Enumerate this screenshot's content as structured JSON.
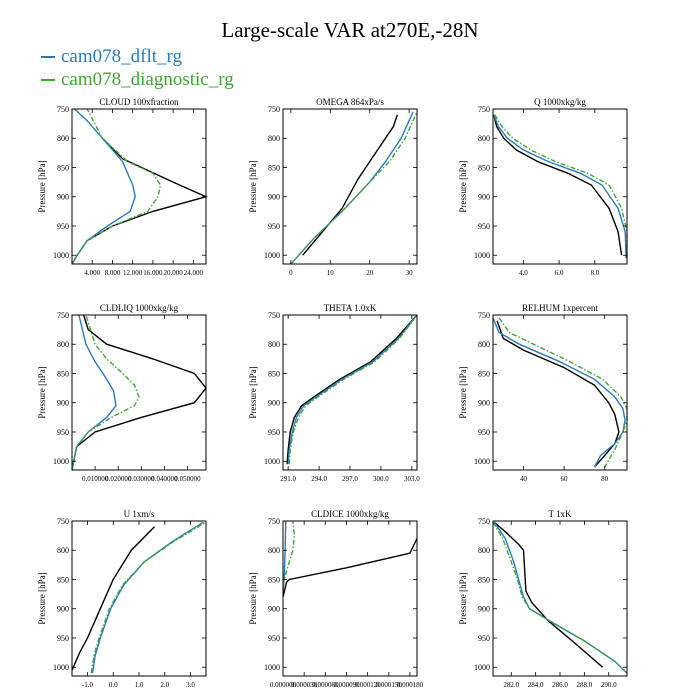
{
  "title": "Large-scale VAR at270E,-28N",
  "legend": [
    {
      "label": "cam078_dflt_rg",
      "color": "#2b7bba"
    },
    {
      "label": "cam078_diagnostic_rg",
      "color": "#3fa535"
    }
  ],
  "obs_color": "#000000",
  "chart_data": [
    {
      "type": "line",
      "title": "CLOUD 100xfraction",
      "ylabel": "Pressure [hPa]",
      "xlim": [
        0,
        26.5
      ],
      "ylim": [
        1015,
        750
      ],
      "xticks": [
        4,
        8,
        12,
        16,
        20,
        24
      ],
      "xticklabels": [
        "4.000",
        "8.000",
        "12.000",
        "16.000",
        "20.000",
        "24.000"
      ],
      "yticks": [
        750,
        800,
        850,
        900,
        950,
        1000
      ],
      "series": [
        {
          "style": "solid",
          "color_key": "obs",
          "x": [
            0,
            1,
            3,
            8,
            16,
            26.5,
            20,
            10,
            6
          ],
          "y": [
            1015,
            1000,
            975,
            950,
            925,
            900,
            875,
            835,
            800
          ]
        },
        {
          "style": "solid",
          "color_key": "0",
          "x": [
            0,
            1,
            3,
            7,
            11.5,
            12.5,
            12,
            11,
            10,
            6,
            3,
            0.5
          ],
          "y": [
            1015,
            1000,
            975,
            950,
            925,
            900,
            880,
            860,
            840,
            800,
            770,
            750
          ]
        },
        {
          "style": "dashdot",
          "color_key": "1",
          "x": [
            0,
            1,
            3,
            8,
            15,
            17,
            17.5,
            16,
            11,
            6,
            3
          ],
          "y": [
            1015,
            1000,
            975,
            950,
            925,
            900,
            880,
            860,
            840,
            800,
            750
          ]
        }
      ]
    },
    {
      "type": "line",
      "title": "OMEGA 864xPa/s",
      "ylabel": "",
      "xlim": [
        -2,
        32
      ],
      "ylim": [
        1015,
        750
      ],
      "xticks": [
        0,
        10,
        20,
        30
      ],
      "xticklabels": [
        "0",
        "10",
        "20",
        "30"
      ],
      "yticks": [
        750,
        800,
        850,
        900,
        950,
        1000
      ],
      "series": [
        {
          "style": "solid",
          "color_key": "obs",
          "x": [
            3,
            8,
            13,
            17,
            20,
            22,
            24,
            26,
            27
          ],
          "y": [
            1000,
            960,
            920,
            870,
            840,
            820,
            800,
            780,
            760
          ]
        },
        {
          "style": "solid",
          "color_key": "0",
          "x": [
            0,
            6,
            13,
            20,
            24,
            28,
            31
          ],
          "y": [
            1015,
            970,
            925,
            875,
            840,
            800,
            755
          ]
        },
        {
          "style": "dashdot",
          "color_key": "1",
          "x": [
            0,
            6,
            13,
            20,
            25,
            29,
            32
          ],
          "y": [
            1015,
            970,
            925,
            875,
            840,
            800,
            755
          ]
        }
      ]
    },
    {
      "type": "line",
      "title": "Q 1000xkg/kg",
      "ylabel": "",
      "xlim": [
        2.3,
        9.8
      ],
      "ylim": [
        1015,
        750
      ],
      "xticks": [
        4,
        6,
        8
      ],
      "xticklabels": [
        "4.0",
        "6.0",
        "8.0"
      ],
      "yticks": [
        750,
        800,
        850,
        900,
        950,
        1000
      ],
      "series": [
        {
          "style": "solid",
          "color_key": "obs",
          "x": [
            2.35,
            2.5,
            2.9,
            3.6,
            4.8,
            6.5,
            7.8,
            8.8,
            9.3,
            9.5
          ],
          "y": [
            760,
            780,
            800,
            820,
            840,
            860,
            880,
            920,
            960,
            1000
          ]
        },
        {
          "style": "solid",
          "color_key": "0",
          "x": [
            2.35,
            2.6,
            3.1,
            4.0,
            5.4,
            7.2,
            8.4,
            9.3,
            9.7,
            9.75
          ],
          "y": [
            760,
            780,
            800,
            820,
            840,
            860,
            880,
            920,
            960,
            1005
          ]
        },
        {
          "style": "dashdot",
          "color_key": "1",
          "x": [
            2.4,
            2.8,
            3.4,
            4.4,
            5.8,
            7.6,
            8.8,
            9.5,
            9.8,
            9.8
          ],
          "y": [
            760,
            780,
            800,
            820,
            840,
            860,
            880,
            920,
            960,
            1005
          ]
        }
      ]
    },
    {
      "type": "line",
      "title": "CLDLIQ 1000xkg/kg",
      "ylabel": "",
      "xlim": [
        0,
        0.058
      ],
      "ylim": [
        1015,
        750
      ],
      "xticks": [
        0.01,
        0.02,
        0.03,
        0.04,
        0.05
      ],
      "xticklabels": [
        "0.010000",
        "0.020000",
        "0.030000",
        "0.040000",
        "0.050000"
      ],
      "yticks": [
        750,
        800,
        850,
        900,
        950,
        1000
      ],
      "series": [
        {
          "style": "solid",
          "color_key": "obs",
          "x": [
            0,
            0.002,
            0.01,
            0.03,
            0.053,
            0.058,
            0.053,
            0.035,
            0.015,
            0.007,
            0.005
          ],
          "y": [
            1015,
            975,
            950,
            925,
            900,
            875,
            850,
            825,
            800,
            775,
            750
          ]
        },
        {
          "style": "solid",
          "color_key": "0",
          "x": [
            0,
            0.002,
            0.007,
            0.015,
            0.019,
            0.018,
            0.015,
            0.01,
            0.006,
            0.003
          ],
          "y": [
            1015,
            975,
            950,
            925,
            905,
            880,
            860,
            830,
            800,
            750
          ]
        },
        {
          "style": "dashdot",
          "color_key": "1",
          "x": [
            0,
            0.002,
            0.007,
            0.017,
            0.027,
            0.029,
            0.027,
            0.022,
            0.015,
            0.01,
            0.006
          ],
          "y": [
            1015,
            975,
            950,
            925,
            905,
            890,
            870,
            850,
            825,
            800,
            750
          ]
        }
      ]
    },
    {
      "type": "line",
      "title": "THETA 1.0xK",
      "ylabel": "",
      "xlim": [
        290.5,
        303.5
      ],
      "ylim": [
        1015,
        750
      ],
      "xticks": [
        291,
        294,
        297,
        300,
        303
      ],
      "xticklabels": [
        "291.0",
        "294.0",
        "297.0",
        "300.0",
        "303.0"
      ],
      "yticks": [
        750,
        800,
        850,
        900,
        950,
        1000
      ],
      "series": [
        {
          "style": "solid",
          "color_key": "obs",
          "x": [
            290.9,
            291.0,
            291.2,
            291.6,
            292.3,
            293.5,
            296.0,
            299.0,
            301.5,
            303.5
          ],
          "y": [
            1005,
            980,
            950,
            925,
            905,
            890,
            860,
            830,
            790,
            750
          ]
        },
        {
          "style": "solid",
          "color_key": "0",
          "x": [
            291.0,
            291.1,
            291.4,
            291.8,
            292.5,
            293.7,
            296.2,
            299.2,
            301.7,
            303.5
          ],
          "y": [
            1005,
            980,
            950,
            925,
            905,
            890,
            860,
            830,
            790,
            750
          ]
        },
        {
          "style": "dashdot",
          "color_key": "1",
          "x": [
            291.1,
            291.2,
            291.5,
            292.0,
            292.7,
            293.9,
            296.4,
            299.4,
            301.8,
            303.5
          ],
          "y": [
            1005,
            980,
            950,
            925,
            905,
            890,
            860,
            830,
            790,
            750
          ]
        }
      ]
    },
    {
      "type": "line",
      "title": "RELHUM 1xpercent",
      "ylabel": "",
      "xlim": [
        25,
        91
      ],
      "ylim": [
        1015,
        750
      ],
      "xticks": [
        40,
        60,
        80
      ],
      "xticklabels": [
        "40",
        "60",
        "80"
      ],
      "yticks": [
        750,
        800,
        850,
        900,
        950,
        1000
      ],
      "series": [
        {
          "style": "solid",
          "color_key": "obs",
          "x": [
            27,
            30,
            40,
            60,
            75,
            82,
            85,
            87,
            85,
            80,
            75
          ],
          "y": [
            760,
            790,
            810,
            840,
            870,
            900,
            920,
            950,
            970,
            990,
            1010
          ]
        },
        {
          "style": "solid",
          "color_key": "0",
          "x": [
            25,
            28,
            38,
            58,
            75,
            85,
            89,
            90,
            89,
            85,
            78,
            75
          ],
          "y": [
            755,
            780,
            800,
            830,
            860,
            890,
            910,
            930,
            950,
            970,
            990,
            1010
          ]
        },
        {
          "style": "dashdot",
          "color_key": "1",
          "x": [
            28,
            33,
            45,
            63,
            79,
            88,
            91,
            91,
            89,
            85,
            80
          ],
          "y": [
            755,
            780,
            800,
            830,
            860,
            890,
            910,
            930,
            950,
            980,
            1010
          ]
        }
      ]
    },
    {
      "type": "line",
      "title": "U 1xm/s",
      "ylabel": "",
      "xlim": [
        -1.6,
        3.6
      ],
      "ylim": [
        1015,
        750
      ],
      "xticks": [
        -1,
        0,
        1,
        2,
        3
      ],
      "xticklabels": [
        "-1.0",
        "0.0",
        "1.0",
        "2.0",
        "3.0"
      ],
      "yticks": [
        750,
        800,
        850,
        900,
        950,
        1000
      ],
      "series": [
        {
          "style": "solid",
          "color_key": "obs",
          "x": [
            -1.6,
            -1.3,
            -1.0,
            -0.5,
            0.0,
            0.7,
            1.6
          ],
          "y": [
            1005,
            975,
            950,
            900,
            850,
            800,
            760
          ]
        },
        {
          "style": "solid",
          "color_key": "0",
          "x": [
            -0.8,
            -0.7,
            -0.5,
            -0.1,
            0.4,
            1.2,
            2.3,
            3.5
          ],
          "y": [
            1010,
            980,
            950,
            900,
            860,
            820,
            785,
            752
          ]
        },
        {
          "style": "dashdot",
          "color_key": "1",
          "x": [
            -0.85,
            -0.75,
            -0.55,
            -0.15,
            0.35,
            1.2,
            2.35,
            3.6
          ],
          "y": [
            1010,
            980,
            950,
            900,
            860,
            820,
            785,
            752
          ]
        }
      ]
    },
    {
      "type": "line",
      "title": "CLDICE 1000xkg/kg",
      "ylabel": "",
      "xlim": [
        0,
        0.00019
      ],
      "ylim": [
        1015,
        750
      ],
      "xticks": [
        0,
        3e-05,
        6e-05,
        9e-05,
        0.00012,
        0.00015,
        0.00018
      ],
      "xticklabels": [
        "0.000000",
        "0.000030",
        "0.000060",
        "0.000090",
        "0.000120",
        "0.000150",
        "0.000180"
      ],
      "yticks": [
        750,
        800,
        850,
        900,
        950,
        1000
      ],
      "series": [
        {
          "style": "solid",
          "color_key": "obs",
          "x": [
            0,
            2e-06,
            5e-06,
            9e-06,
            9e-05,
            0.00018,
            0.00019
          ],
          "y": [
            880,
            870,
            855,
            850,
            830,
            805,
            780
          ]
        },
        {
          "style": "solid",
          "color_key": "0",
          "x": [
            0,
            2e-06,
            3e-06,
            4e-06
          ],
          "y": [
            870,
            840,
            800,
            750
          ]
        },
        {
          "style": "dashdot",
          "color_key": "1",
          "x": [
            0,
            4e-06,
            9e-06,
            1.4e-05,
            1.6e-05,
            1.4e-05
          ],
          "y": [
            860,
            840,
            820,
            800,
            775,
            750
          ]
        }
      ]
    },
    {
      "type": "line",
      "title": "T 1xK",
      "ylabel": "",
      "xlim": [
        280.5,
        291.5
      ],
      "ylim": [
        1015,
        750
      ],
      "xticks": [
        282,
        284,
        286,
        288,
        290
      ],
      "xticklabels": [
        "282.0",
        "284.0",
        "286.0",
        "288.0",
        "290.0"
      ],
      "yticks": [
        750,
        800,
        850,
        900,
        950,
        1000
      ],
      "series": [
        {
          "style": "solid",
          "color_key": "obs",
          "x": [
            280.6,
            281.6,
            282.6,
            283.0,
            283.2,
            283.7,
            285.0,
            287.0,
            289.5
          ],
          "y": [
            752,
            770,
            790,
            800,
            870,
            890,
            920,
            955,
            1000
          ]
        },
        {
          "style": "solid",
          "color_key": "0",
          "x": [
            280.6,
            281.5,
            282.2,
            282.6,
            283.0,
            283.5,
            285.5,
            288.0,
            290.5,
            291.5
          ],
          "y": [
            752,
            780,
            820,
            850,
            880,
            900,
            925,
            955,
            990,
            1010
          ]
        },
        {
          "style": "dashdot",
          "color_key": "1",
          "x": [
            280.5,
            281.3,
            282.0,
            282.5,
            282.9,
            283.5,
            285.5,
            288.0,
            290.5,
            291.5
          ],
          "y": [
            752,
            780,
            820,
            850,
            880,
            900,
            925,
            955,
            990,
            1010
          ]
        }
      ]
    }
  ]
}
